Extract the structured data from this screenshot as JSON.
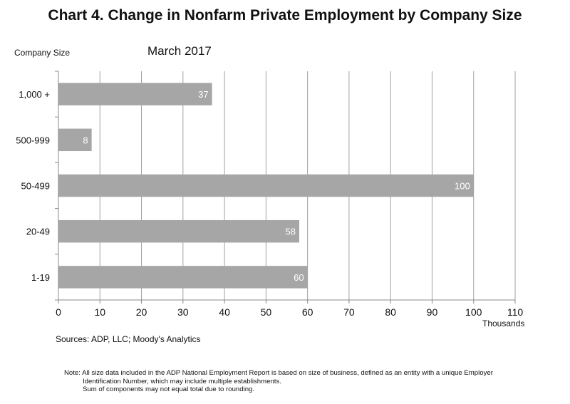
{
  "title": "Chart 4. Change in Nonfarm Private Employment by Company Size",
  "subtitle": "March 2017",
  "ylabel": "Company Size",
  "xunits": "Thousands",
  "sources": "Sources: ADP, LLC; Moody's Analytics",
  "note": {
    "line1": "Note:  All size data included in the ADP National Employment Report is based on size of business, defined as an entity with a unique Employer",
    "line2": "Identification Number, which may include multiple establishments.",
    "line3": "Sum of components may not equal total due to rounding."
  },
  "colors": {
    "bar": "#a6a6a6",
    "bar_label": "#ffffff",
    "grid": "#a0a0a0"
  },
  "chart_data": {
    "type": "bar",
    "orientation": "horizontal",
    "categories": [
      "1,000 +",
      "500-999",
      "50-499",
      "20-49",
      "1-19"
    ],
    "values": [
      37,
      8,
      100,
      58,
      60
    ],
    "data_labels": [
      "37",
      "8",
      "100",
      "58",
      "60"
    ],
    "title": "Chart 4. Change in Nonfarm Private Employment by Company Size",
    "subtitle": "March 2017",
    "xlabel": "Thousands",
    "ylabel": "Company Size",
    "xlim": [
      0,
      110
    ],
    "xticks": [
      0,
      10,
      20,
      30,
      40,
      50,
      60,
      70,
      80,
      90,
      100,
      110
    ],
    "grid": true,
    "legend": "none"
  }
}
